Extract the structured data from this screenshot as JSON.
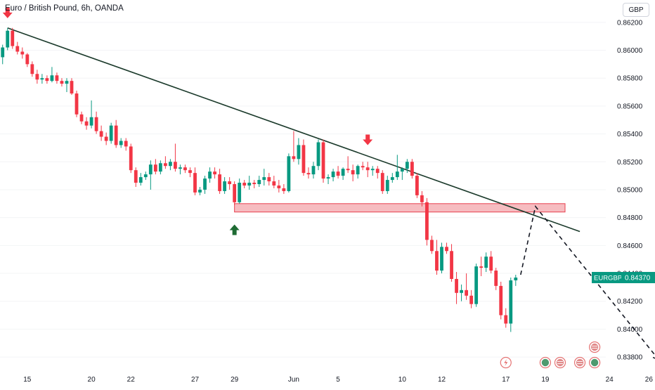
{
  "header": {
    "title": "Euro / British Pound, 6h, OANDA",
    "currency_button": "GBP"
  },
  "price_label": {
    "symbol": "EURGBP",
    "value": "0.84370",
    "price": 0.8437,
    "color": "#089981"
  },
  "colors": {
    "up": "#089981",
    "down": "#f23645",
    "trendline": "#1b3a2b",
    "zone_fill": "#f3a6ab",
    "zone_border": "#e8404f",
    "arrow_down": "#f23645",
    "arrow_up": "#1e6b33",
    "axis_text": "#131722"
  },
  "chart_data": {
    "type": "candlestick",
    "title": "Euro / British Pound, 6h, OANDA",
    "symbol": "EURGBP",
    "ylim": [
      0.8374,
      0.8632
    ],
    "y_ticks": [
      0.838,
      0.84,
      0.842,
      0.844,
      0.846,
      0.848,
      0.85,
      0.852,
      0.854,
      0.856,
      0.858,
      0.86,
      0.862
    ],
    "y_tick_labels": [
      "0.83800",
      "0.84000",
      "0.84200",
      "0.84400",
      "0.84600",
      "0.84800",
      "0.85000",
      "0.85200",
      "0.85400",
      "0.85600",
      "0.85800",
      "0.86000",
      "0.86200"
    ],
    "x_ticks": [
      {
        "label": "15",
        "bar": 6
      },
      {
        "label": "20",
        "bar": 19
      },
      {
        "label": "22",
        "bar": 27
      },
      {
        "label": "27",
        "bar": 40
      },
      {
        "label": "29",
        "bar": 48
      },
      {
        "label": "Jun",
        "bar": 60
      },
      {
        "label": "5",
        "bar": 69
      },
      {
        "label": "10",
        "bar": 82
      },
      {
        "label": "12",
        "bar": 90
      },
      {
        "label": "17",
        "bar": 103
      },
      {
        "label": "19",
        "bar": 111
      },
      {
        "label": "24",
        "bar": 124
      },
      {
        "label": "26",
        "bar": 132
      }
    ],
    "candles": [
      [
        0.86,
        0.8602,
        0.8591,
        0.8595
      ],
      [
        0.8595,
        0.8604,
        0.859,
        0.8602
      ],
      [
        0.8602,
        0.8616,
        0.86,
        0.8614
      ],
      [
        0.8614,
        0.8616,
        0.8601,
        0.8603
      ],
      [
        0.8603,
        0.8606,
        0.8597,
        0.8599
      ],
      [
        0.8599,
        0.8602,
        0.8594,
        0.8597
      ],
      [
        0.8597,
        0.8598,
        0.8588,
        0.859
      ],
      [
        0.859,
        0.8592,
        0.8581,
        0.8583
      ],
      [
        0.8583,
        0.8586,
        0.8576,
        0.8579
      ],
      [
        0.8579,
        0.8583,
        0.8576,
        0.858
      ],
      [
        0.858,
        0.8582,
        0.8576,
        0.8578
      ],
      [
        0.8578,
        0.8588,
        0.8577,
        0.8582
      ],
      [
        0.8582,
        0.8584,
        0.8576,
        0.8578
      ],
      [
        0.8578,
        0.858,
        0.8574,
        0.8576
      ],
      [
        0.8576,
        0.858,
        0.857,
        0.8578
      ],
      [
        0.8578,
        0.858,
        0.8568,
        0.8569
      ],
      [
        0.8569,
        0.8571,
        0.8552,
        0.8554
      ],
      [
        0.8554,
        0.8556,
        0.8547,
        0.8549
      ],
      [
        0.8549,
        0.8552,
        0.8543,
        0.8546
      ],
      [
        0.8546,
        0.8564,
        0.8544,
        0.8552
      ],
      [
        0.8552,
        0.8556,
        0.854,
        0.8542
      ],
      [
        0.8542,
        0.8546,
        0.8535,
        0.8538
      ],
      [
        0.8538,
        0.8541,
        0.8532,
        0.8535
      ],
      [
        0.8535,
        0.8548,
        0.8533,
        0.8546
      ],
      [
        0.8546,
        0.855,
        0.853,
        0.8532
      ],
      [
        0.8532,
        0.8537,
        0.853,
        0.8535
      ],
      [
        0.8535,
        0.8537,
        0.8528,
        0.8531
      ],
      [
        0.8531,
        0.8533,
        0.8512,
        0.8514
      ],
      [
        0.8514,
        0.8516,
        0.8502,
        0.8505
      ],
      [
        0.8505,
        0.8512,
        0.8503,
        0.8509
      ],
      [
        0.8509,
        0.8513,
        0.8507,
        0.8511
      ],
      [
        0.8511,
        0.8521,
        0.85,
        0.8518
      ],
      [
        0.8518,
        0.8522,
        0.8511,
        0.8513
      ],
      [
        0.8513,
        0.8521,
        0.8511,
        0.8519
      ],
      [
        0.8519,
        0.8524,
        0.8515,
        0.8517
      ],
      [
        0.8517,
        0.8522,
        0.8514,
        0.852
      ],
      [
        0.852,
        0.8533,
        0.8513,
        0.8515
      ],
      [
        0.8515,
        0.8518,
        0.8511,
        0.8516
      ],
      [
        0.8516,
        0.8518,
        0.8512,
        0.8514
      ],
      [
        0.8514,
        0.8516,
        0.8509,
        0.8512
      ],
      [
        0.8512,
        0.8516,
        0.8496,
        0.8498
      ],
      [
        0.8498,
        0.8502,
        0.8496,
        0.85
      ],
      [
        0.85,
        0.851,
        0.8497,
        0.8508
      ],
      [
        0.8508,
        0.8516,
        0.8505,
        0.8513
      ],
      [
        0.8513,
        0.8516,
        0.8508,
        0.8511
      ],
      [
        0.8511,
        0.8515,
        0.8497,
        0.8499
      ],
      [
        0.8499,
        0.8509,
        0.8497,
        0.8506
      ],
      [
        0.8506,
        0.8509,
        0.85,
        0.8504
      ],
      [
        0.8504,
        0.8506,
        0.8489,
        0.8491
      ],
      [
        0.8491,
        0.8508,
        0.849,
        0.8505
      ],
      [
        0.8505,
        0.8507,
        0.8501,
        0.8503
      ],
      [
        0.8503,
        0.851,
        0.85,
        0.8505
      ],
      [
        0.8505,
        0.8507,
        0.8501,
        0.8504
      ],
      [
        0.8504,
        0.851,
        0.8502,
        0.8507
      ],
      [
        0.8507,
        0.8515,
        0.8503,
        0.8509
      ],
      [
        0.8509,
        0.8512,
        0.8503,
        0.8506
      ],
      [
        0.8506,
        0.851,
        0.8501,
        0.8503
      ],
      [
        0.8503,
        0.8507,
        0.8498,
        0.8501
      ],
      [
        0.8501,
        0.8504,
        0.8497,
        0.8499
      ],
      [
        0.8499,
        0.8526,
        0.8498,
        0.8524
      ],
      [
        0.8524,
        0.8542,
        0.852,
        0.8522
      ],
      [
        0.8522,
        0.8537,
        0.8518,
        0.8532
      ],
      [
        0.8532,
        0.8536,
        0.851,
        0.8512
      ],
      [
        0.8512,
        0.8516,
        0.8508,
        0.8511
      ],
      [
        0.8511,
        0.852,
        0.8508,
        0.8517
      ],
      [
        0.8517,
        0.8536,
        0.8514,
        0.8534
      ],
      [
        0.8534,
        0.8536,
        0.8505,
        0.8508
      ],
      [
        0.8508,
        0.8511,
        0.8504,
        0.8509
      ],
      [
        0.8509,
        0.8515,
        0.8506,
        0.8513
      ],
      [
        0.8513,
        0.8517,
        0.8508,
        0.851
      ],
      [
        0.851,
        0.8516,
        0.8507,
        0.8515
      ],
      [
        0.8515,
        0.8524,
        0.8512,
        0.8514
      ],
      [
        0.8514,
        0.8518,
        0.8506,
        0.8511
      ],
      [
        0.8511,
        0.8518,
        0.8508,
        0.8517
      ],
      [
        0.8517,
        0.852,
        0.8514,
        0.8516
      ],
      [
        0.8516,
        0.852,
        0.8509,
        0.8514
      ],
      [
        0.8514,
        0.8517,
        0.851,
        0.8515
      ],
      [
        0.8515,
        0.8517,
        0.8508,
        0.8512
      ],
      [
        0.8512,
        0.8514,
        0.8497,
        0.8499
      ],
      [
        0.8499,
        0.851,
        0.8497,
        0.8507
      ],
      [
        0.8507,
        0.8512,
        0.8505,
        0.8509
      ],
      [
        0.8509,
        0.8525,
        0.8507,
        0.8513
      ],
      [
        0.8513,
        0.8516,
        0.8507,
        0.8515
      ],
      [
        0.8515,
        0.8522,
        0.8512,
        0.852
      ],
      [
        0.852,
        0.8522,
        0.8508,
        0.851
      ],
      [
        0.851,
        0.8512,
        0.8494,
        0.8496
      ],
      [
        0.8496,
        0.8499,
        0.8488,
        0.8491
      ],
      [
        0.8491,
        0.8494,
        0.846,
        0.8464
      ],
      [
        0.8464,
        0.8467,
        0.8454,
        0.8456
      ],
      [
        0.8456,
        0.8464,
        0.8439,
        0.8442
      ],
      [
        0.8442,
        0.8462,
        0.844,
        0.8459
      ],
      [
        0.8459,
        0.8462,
        0.8454,
        0.8456
      ],
      [
        0.8456,
        0.8461,
        0.8434,
        0.8436
      ],
      [
        0.8436,
        0.8441,
        0.8418,
        0.8426
      ],
      [
        0.8426,
        0.8432,
        0.842,
        0.8428
      ],
      [
        0.8428,
        0.844,
        0.8421,
        0.8424
      ],
      [
        0.8424,
        0.8428,
        0.8415,
        0.8418
      ],
      [
        0.8418,
        0.8447,
        0.8416,
        0.8445
      ],
      [
        0.8445,
        0.8452,
        0.8438,
        0.8444
      ],
      [
        0.8444,
        0.8455,
        0.8441,
        0.8452
      ],
      [
        0.8452,
        0.8456,
        0.844,
        0.8442
      ],
      [
        0.8442,
        0.8444,
        0.8428,
        0.8431
      ],
      [
        0.8431,
        0.8434,
        0.8407,
        0.841
      ],
      [
        0.841,
        0.8415,
        0.8401,
        0.8404
      ],
      [
        0.8404,
        0.8437,
        0.8398,
        0.8435
      ],
      [
        0.8435,
        0.8439,
        0.8431,
        0.8437
      ]
    ],
    "trendline": {
      "from": {
        "bar": 2,
        "price": 0.8616
      },
      "to": {
        "bar": 118,
        "price": 0.847
      }
    },
    "zone": {
      "from_bar": 48,
      "to_bar": 115,
      "top": 0.849,
      "bottom": 0.8484
    },
    "arrows": [
      {
        "kind": "down",
        "bar": 2,
        "price": 0.8626
      },
      {
        "kind": "down",
        "bar": 75,
        "price": 0.8535
      },
      {
        "kind": "up",
        "bar": 48,
        "price": 0.8472
      }
    ],
    "projection": {
      "path": [
        {
          "bar": 106,
          "price": 0.8439
        },
        {
          "bar": 109,
          "price": 0.8488
        },
        {
          "bar": 134,
          "price": 0.8378
        }
      ]
    },
    "event_markers": [
      {
        "bar": 103,
        "kind": "dividend"
      },
      {
        "bar": 111,
        "kind": "economic"
      },
      {
        "bar": 114,
        "kind": "flag"
      },
      {
        "bar": 118,
        "kind": "flag"
      },
      {
        "bar": 121,
        "kind": "economic"
      },
      {
        "bar": 121,
        "kind": "flag",
        "stack": 1
      }
    ]
  }
}
